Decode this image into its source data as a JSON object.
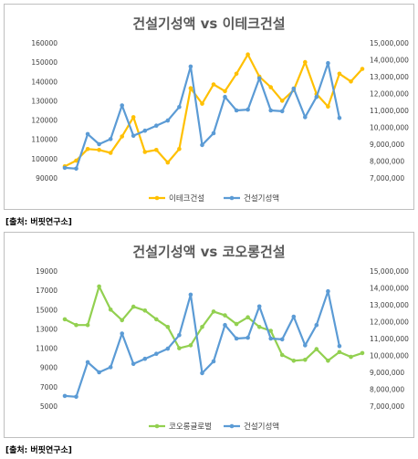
{
  "source_note": "[출처: 버핏연구소]",
  "chart_data": [
    {
      "type": "line",
      "title": "건설기성액 vs 이테크건설",
      "left_axis": {
        "min": 90000,
        "max": 160000,
        "step": 10000,
        "labels": [
          "90000",
          "100000",
          "110000",
          "120000",
          "130000",
          "140000",
          "150000",
          "160000"
        ]
      },
      "right_axis": {
        "min": 7000000,
        "max": 15000000,
        "step": 1000000,
        "labels": [
          "7,000,000",
          "8,000,000",
          "9,000,000",
          "10,000,000",
          "11,000,000",
          "12,000,000",
          "13,000,000",
          "14,000,000",
          "15,000,000"
        ]
      },
      "legend_position": "bottom",
      "series": [
        {
          "name": "이테크건설",
          "axis": "left",
          "color": "#FFC000",
          "values": [
            96000,
            99000,
            105000,
            104500,
            103000,
            111500,
            121500,
            103500,
            104500,
            98000,
            105000,
            136500,
            128500,
            138500,
            135000,
            144000,
            154000,
            142500,
            137000,
            130000,
            135500,
            150000,
            133500,
            127000,
            144000,
            140000,
            146500
          ]
        },
        {
          "name": "건설기성액",
          "axis": "right",
          "color": "#5B9BD5",
          "values": [
            7600000,
            7550000,
            9600000,
            9000000,
            9300000,
            11300000,
            9500000,
            9800000,
            10100000,
            10400000,
            11200000,
            13600000,
            8950000,
            9650000,
            11800000,
            11000000,
            11050000,
            12900000,
            11000000,
            10950000,
            12300000,
            10600000,
            11800000,
            13800000,
            10550000
          ]
        }
      ]
    },
    {
      "type": "line",
      "title": "건설기성액 vs 코오롱건설",
      "left_axis": {
        "min": 5000,
        "max": 19000,
        "step": 2000,
        "labels": [
          "5000",
          "7000",
          "9000",
          "11000",
          "13000",
          "15000",
          "17000",
          "19000"
        ]
      },
      "right_axis": {
        "min": 7000000,
        "max": 15000000,
        "step": 1000000,
        "labels": [
          "7,000,000",
          "8,000,000",
          "9,000,000",
          "10,000,000",
          "11,000,000",
          "12,000,000",
          "13,000,000",
          "14,000,000",
          "15,000,000"
        ]
      },
      "legend_position": "bottom",
      "series": [
        {
          "name": "코오롱글로벌",
          "axis": "left",
          "color": "#92D050",
          "values": [
            14000,
            13400,
            13400,
            17400,
            15000,
            13900,
            15300,
            14900,
            14000,
            13200,
            11000,
            11300,
            13200,
            14800,
            14400,
            13500,
            14200,
            13200,
            12800,
            10300,
            9700,
            9800,
            10900,
            9700,
            10600,
            10100,
            10500
          ]
        },
        {
          "name": "건설기성액",
          "axis": "right",
          "color": "#5B9BD5",
          "values": [
            7600000,
            7550000,
            9600000,
            9000000,
            9300000,
            11300000,
            9500000,
            9800000,
            10100000,
            10400000,
            11200000,
            13600000,
            8950000,
            9650000,
            11800000,
            11000000,
            11050000,
            12900000,
            11000000,
            10950000,
            12300000,
            10600000,
            11800000,
            13800000,
            10550000
          ]
        }
      ]
    }
  ]
}
